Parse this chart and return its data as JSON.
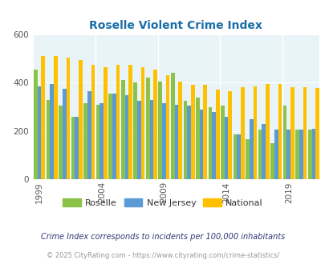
{
  "title": "Roselle Violent Crime Index",
  "years": [
    1999,
    2000,
    2001,
    2002,
    2003,
    2004,
    2005,
    2006,
    2007,
    2008,
    2009,
    2010,
    2011,
    2012,
    2013,
    2014,
    2015,
    2016,
    2017,
    2018,
    2019,
    2020,
    2021
  ],
  "roselle": [
    455,
    330,
    305,
    260,
    315,
    310,
    355,
    410,
    400,
    420,
    405,
    440,
    325,
    340,
    300,
    305,
    185,
    165,
    205,
    150,
    305,
    205,
    205
  ],
  "new_jersey": [
    385,
    395,
    375,
    260,
    365,
    315,
    355,
    350,
    325,
    330,
    315,
    310,
    305,
    290,
    280,
    260,
    185,
    250,
    230,
    205,
    205,
    205,
    208
  ],
  "national": [
    510,
    510,
    505,
    495,
    475,
    465,
    475,
    475,
    465,
    455,
    430,
    405,
    390,
    390,
    370,
    365,
    380,
    385,
    395,
    395,
    380,
    380,
    378
  ],
  "roselle_color": "#8bc34a",
  "nj_color": "#5b9bd5",
  "national_color": "#ffc000",
  "bg_color": "#e8f4f8",
  "ylim": [
    0,
    600
  ],
  "yticks": [
    0,
    200,
    400,
    600
  ],
  "footnote1": "Crime Index corresponds to incidents per 100,000 inhabitants",
  "footnote2": "© 2025 CityRating.com - https://www.cityrating.com/crime-statistics/",
  "legend_labels": [
    "Roselle",
    "New Jersey",
    "National"
  ],
  "tick_years": [
    1999,
    2004,
    2009,
    2014,
    2019
  ]
}
